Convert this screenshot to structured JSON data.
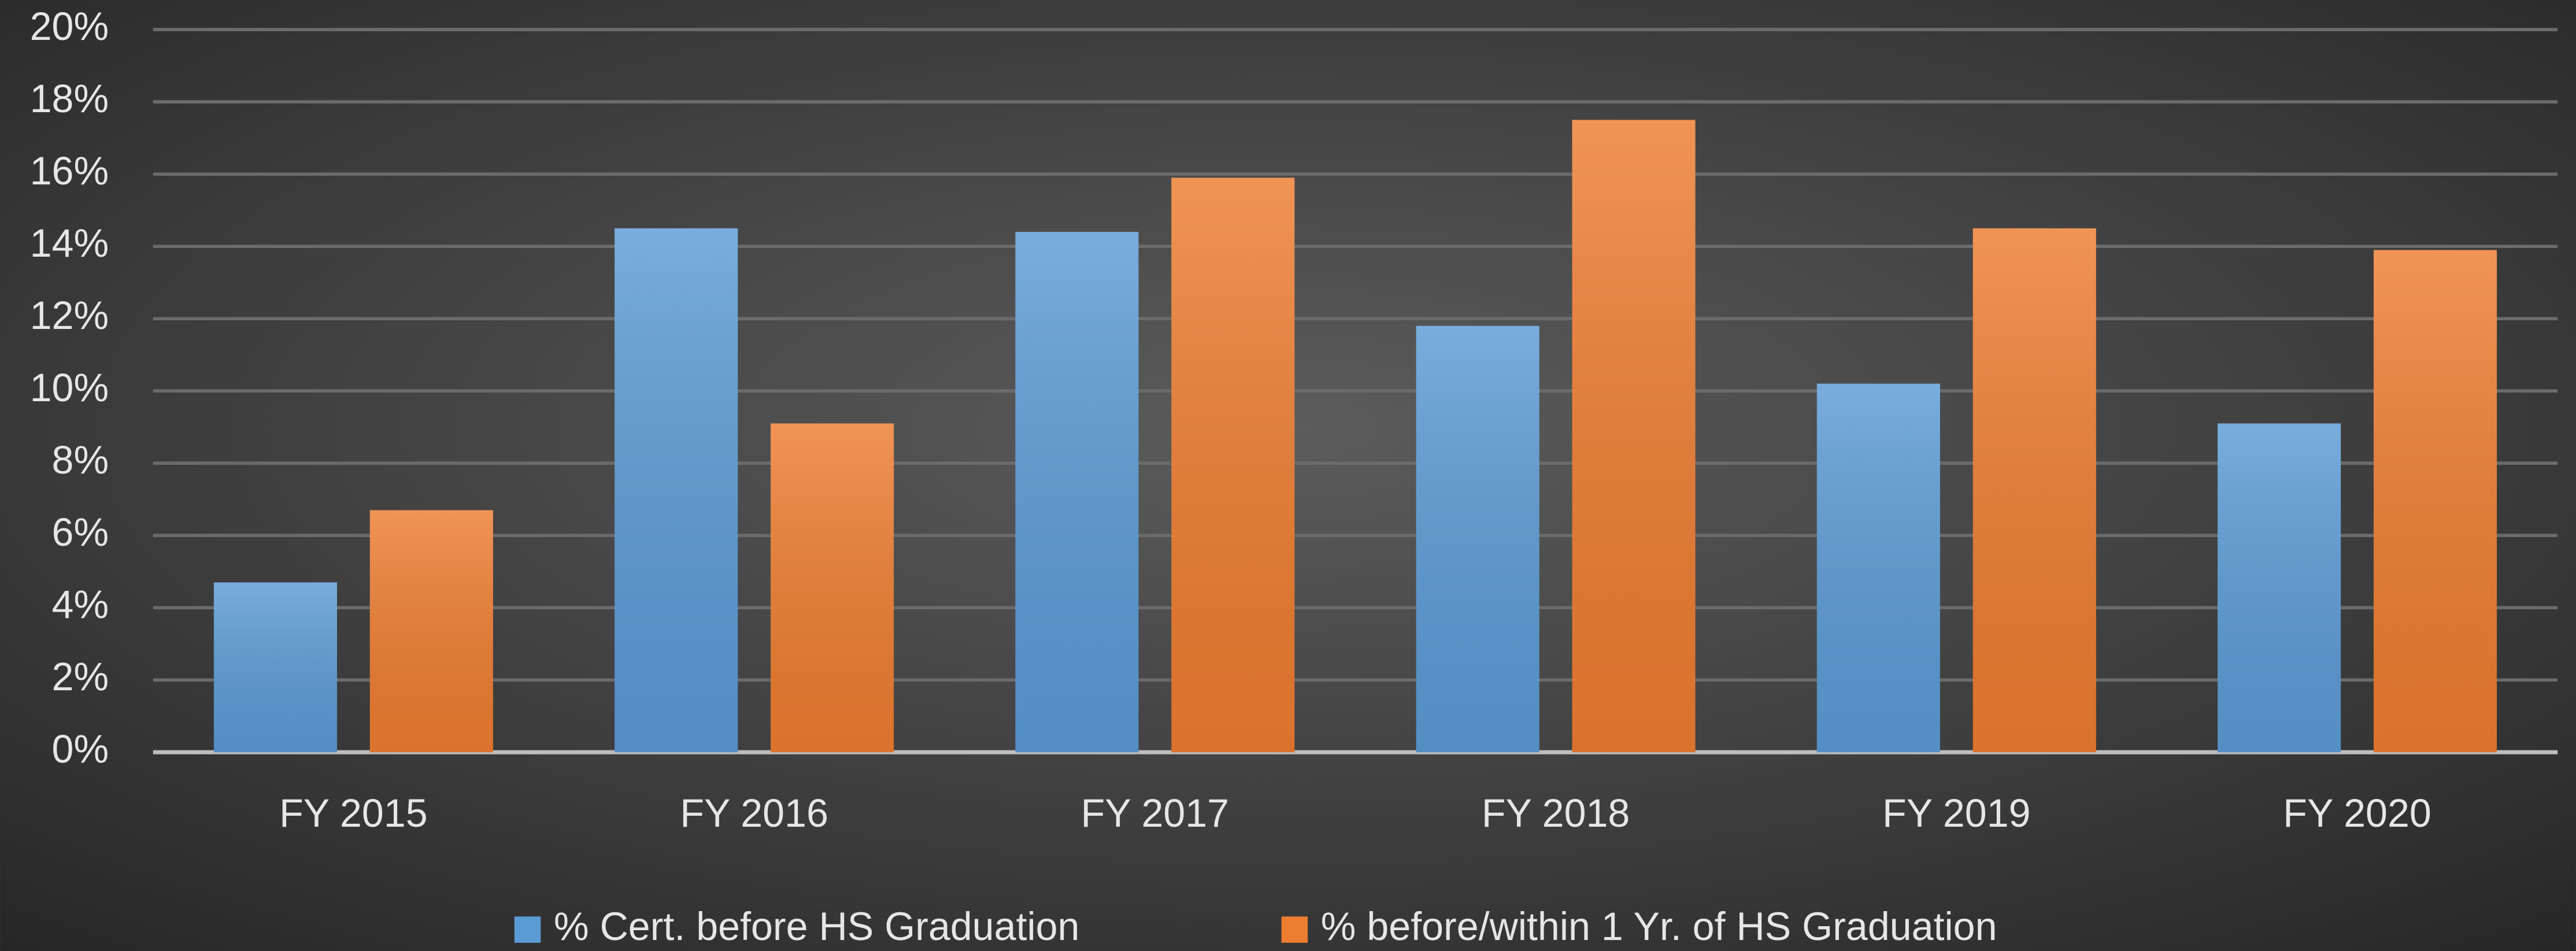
{
  "chart_data": {
    "type": "bar",
    "categories": [
      "FY 2015",
      "FY 2016",
      "FY 2017",
      "FY 2018",
      "FY 2019",
      "FY 2020"
    ],
    "series": [
      {
        "name": "% Cert. before HS Graduation",
        "color": "#5b9bd5",
        "values": [
          4.7,
          14.5,
          14.4,
          11.8,
          10.2,
          9.1
        ]
      },
      {
        "name": "% before/within 1 Yr. of HS Graduation",
        "color": "#ed7d31",
        "values": [
          6.7,
          9.1,
          15.9,
          17.5,
          14.5,
          13.9
        ]
      }
    ],
    "ylim": [
      0,
      20
    ],
    "yticks": [
      {
        "value": 0,
        "label": "0%"
      },
      {
        "value": 2,
        "label": "2%"
      },
      {
        "value": 4,
        "label": "4%"
      },
      {
        "value": 6,
        "label": "6%"
      },
      {
        "value": 8,
        "label": "8%"
      },
      {
        "value": 10,
        "label": "10%"
      },
      {
        "value": 12,
        "label": "12%"
      },
      {
        "value": 14,
        "label": "14%"
      },
      {
        "value": 16,
        "label": "16%"
      },
      {
        "value": 18,
        "label": "18%"
      },
      {
        "value": 20,
        "label": "20%"
      }
    ],
    "grid": true,
    "legend": "bottom"
  }
}
